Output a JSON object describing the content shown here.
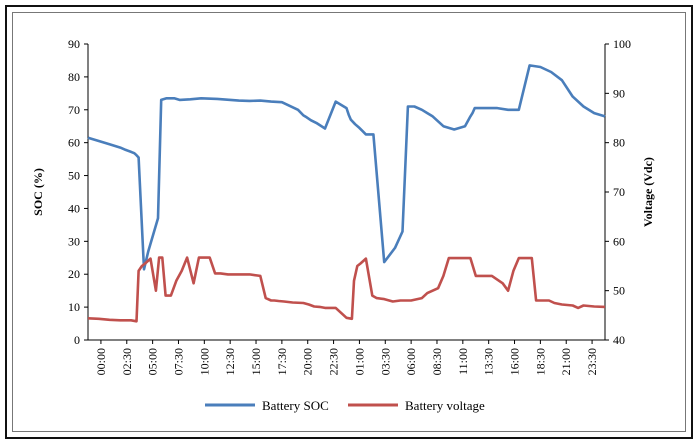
{
  "chart_data": {
    "type": "line",
    "title": "",
    "xlabel": "",
    "ylabel": "SOC (%)",
    "y2label": "Voltage (Vdc)",
    "ylim": [
      0,
      90
    ],
    "yticks": [
      0,
      10,
      20,
      30,
      40,
      50,
      60,
      70,
      80,
      90
    ],
    "y2lim": [
      40,
      100
    ],
    "y2ticks": [
      40,
      50,
      60,
      70,
      80,
      90,
      100
    ],
    "xticks": [
      "00:00",
      "02:30",
      "05:00",
      "07:30",
      "10:00",
      "12:30",
      "15:00",
      "17:30",
      "20:00",
      "22:30",
      "01:00",
      "03:30",
      "06:00",
      "08:30",
      "11:00",
      "13:30",
      "16:00",
      "18:30",
      "21:00",
      "23:30"
    ],
    "x_unit": "hours since first midnight (two days)",
    "x_range": [
      0,
      48
    ],
    "legend_position": "bottom",
    "grid": false,
    "series": [
      {
        "name": "Battery SOC",
        "axis": "left",
        "color": "#4a7ebb",
        "x": [
          0,
          1,
          2,
          3,
          3.5,
          4,
          4.3,
          4.5,
          4.7,
          5.2,
          5.6,
          6.5,
          6.8,
          7.3,
          8,
          8.5,
          9.5,
          10.5,
          12,
          14,
          15,
          16,
          17,
          18,
          19.5,
          20,
          20.3,
          20.7,
          21.2,
          22,
          23,
          24,
          24.2,
          24.4,
          24.8,
          25.2,
          25.5,
          25.8,
          26.5,
          27.5,
          28.5,
          29.2,
          29.7,
          30.3,
          31,
          31.5,
          32,
          33,
          34,
          35,
          35.5,
          35.7,
          35.9,
          37,
          38,
          39,
          40,
          41,
          42,
          43,
          44,
          45,
          46,
          47,
          48
        ],
        "values": [
          61.5,
          60.5,
          59.5,
          58.5,
          57.8,
          57.2,
          56.8,
          56.2,
          55.5,
          21.5,
          27,
          37,
          73,
          73.5,
          73.5,
          73,
          73.2,
          73.5,
          73.3,
          72.8,
          72.7,
          72.8,
          72.5,
          72.3,
          70,
          68.3,
          67.7,
          66.8,
          66,
          64.3,
          72.5,
          70.5,
          68.5,
          67,
          65.6,
          64.5,
          63.5,
          62.5,
          62.5,
          23.7,
          28,
          33,
          71,
          71,
          70,
          69,
          68,
          65,
          64,
          65,
          68,
          69,
          70.5,
          70.5,
          70.5,
          70,
          70,
          83.5,
          83,
          81.5,
          79,
          74,
          71,
          69,
          68
        ]
      },
      {
        "name": "Battery voltage",
        "axis": "right",
        "color": "#c0504d",
        "x": [
          0,
          1,
          2,
          3,
          4,
          4.5,
          4.7,
          5,
          5.3,
          5.8,
          6.3,
          6.6,
          6.9,
          7.2,
          7.7,
          8.2,
          8.7,
          9.2,
          9.8,
          10.3,
          10.8,
          11.3,
          11.8,
          12.3,
          13,
          14,
          15,
          16,
          16.5,
          17,
          17.3,
          17.7,
          18.2,
          19,
          20,
          20.5,
          21,
          21.5,
          22,
          23,
          24,
          24.5,
          24.7,
          25,
          25.3,
          25.8,
          26.4,
          26.8,
          27.5,
          28.3,
          29,
          30,
          31,
          31.5,
          32.5,
          33,
          33.5,
          34,
          34.5,
          35,
          35.5,
          36,
          37.5,
          38.5,
          39,
          39.5,
          40,
          40.5,
          41.2,
          41.6,
          42.2,
          42.8,
          43.3,
          44,
          45,
          45.5,
          46,
          47,
          48
        ],
        "values": [
          44.4,
          44.3,
          44.1,
          44,
          44,
          43.8,
          54,
          55,
          55.5,
          56.5,
          50,
          56.7,
          56.7,
          49,
          49,
          52,
          54,
          56.7,
          51.5,
          56.7,
          56.7,
          56.7,
          53.5,
          53.5,
          53.3,
          53.3,
          53.3,
          53,
          48.5,
          48,
          48,
          47.9,
          47.8,
          47.6,
          47.5,
          47.2,
          46.8,
          46.7,
          46.5,
          46.5,
          44.5,
          44.3,
          52,
          55,
          55.5,
          56.5,
          49,
          48.5,
          48.3,
          47.8,
          48,
          48,
          48.5,
          49.5,
          50.5,
          53,
          56.6,
          56.6,
          56.6,
          56.6,
          56.6,
          53,
          53,
          51.5,
          50,
          54,
          56.6,
          56.6,
          56.6,
          48,
          48,
          48,
          47.5,
          47.2,
          47,
          46.5,
          47,
          46.8,
          46.7
        ]
      }
    ]
  }
}
